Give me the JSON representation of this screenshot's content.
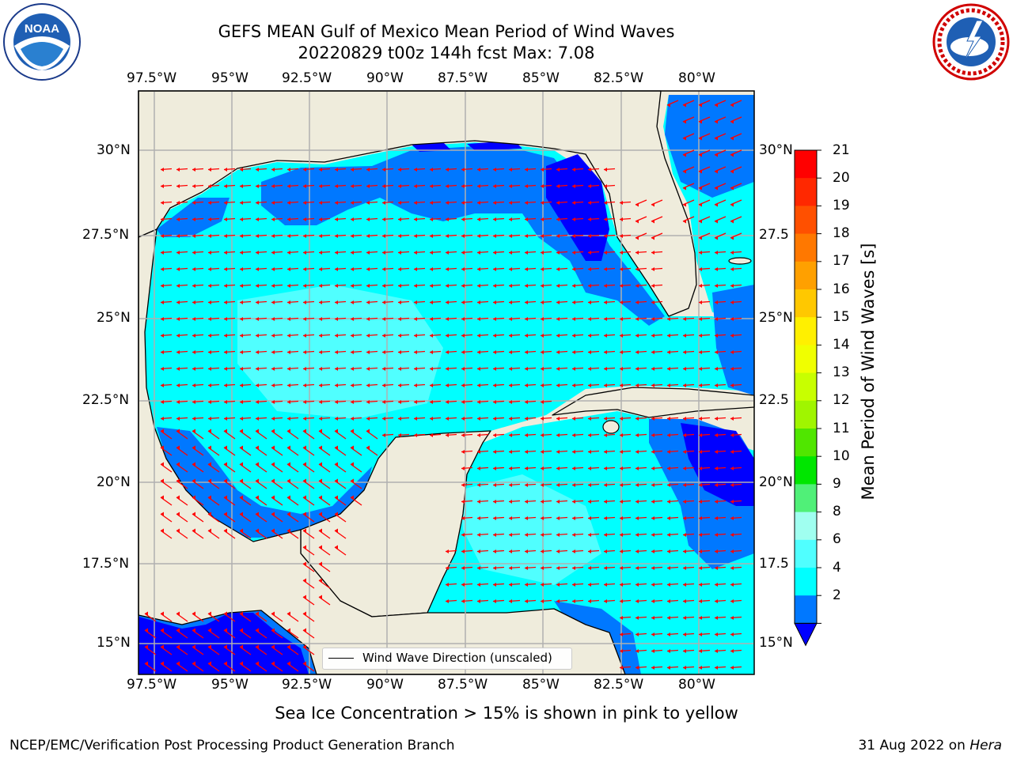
{
  "header": {
    "title_line1": "GEFS MEAN Gulf of Mexico Mean Period of Wind Waves",
    "title_line2": "20220829 t00z 144h fcst   Max: 7.08"
  },
  "logos": {
    "left": {
      "text": "NOAA",
      "ring_text": "NATIONAL OCEANIC AND ATMOSPHERIC ADMINISTRATION · U.S. DEPARTMENT OF COMMERCE"
    },
    "right": {
      "ring_text": "NATIONAL WEATHER SERVICE"
    }
  },
  "map": {
    "lon_ticks": [
      "97.5°W",
      "95°W",
      "92.5°W",
      "90°W",
      "87.5°W",
      "85°W",
      "82.5°W",
      "80°W"
    ],
    "lat_ticks_left": [
      "30°N",
      "27.5°N",
      "25°N",
      "22.5°N",
      "20°N",
      "17.5°N",
      "15°N"
    ],
    "lat_ticks_right": [
      "30°N",
      "27.5",
      "25°N",
      "22.5",
      "20°N",
      "17.5",
      "15°N"
    ],
    "legend_label": "Wind Wave Direction (unscaled)",
    "land_color": "#efecdc",
    "arrow_color": "#ff0000"
  },
  "colorbar": {
    "title": "Mean Period of Wind Waves [s]",
    "labels": [
      "21",
      "20",
      "19",
      "18",
      "17",
      "16",
      "15",
      "14",
      "13",
      "12",
      "11",
      "10",
      "9",
      "8",
      "6",
      "4",
      "2"
    ],
    "colors": [
      "#ff0000",
      "#ff2800",
      "#ff5000",
      "#ff7800",
      "#ffa000",
      "#ffc800",
      "#fff000",
      "#f0ff00",
      "#c8ff00",
      "#a0f500",
      "#50e600",
      "#00e600",
      "#50f078",
      "#a0fff0",
      "#50ffff",
      "#00ffff",
      "#0078ff"
    ],
    "under_color": "#0000ff"
  },
  "caption": "Sea Ice Concentration > 15% is shown in pink to yellow",
  "footer": {
    "left": "NCEP/EMC/Verification Post Processing Product Generation Branch",
    "right_date": "31 Aug 2022 on",
    "right_host": "Hera"
  }
}
